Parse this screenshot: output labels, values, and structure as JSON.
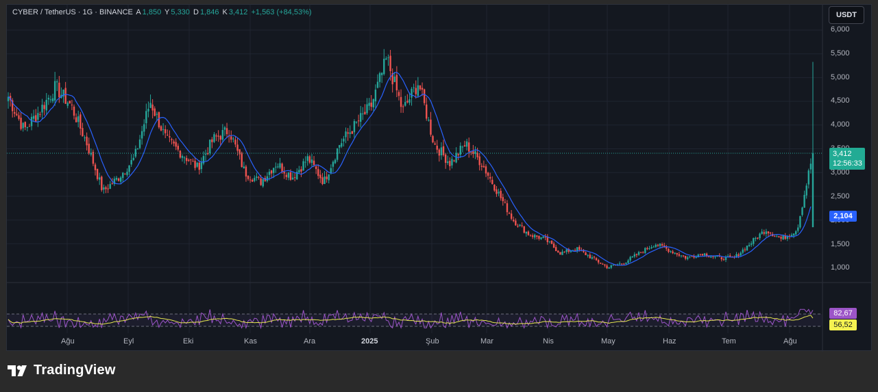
{
  "legend": {
    "symbol": "CYBER / TetherUS · 1G · BINANCE",
    "open_label": "A",
    "open": "1,850",
    "high_label": "Y",
    "high": "5,330",
    "low_label": "D",
    "low": "1,846",
    "close_label": "K",
    "close": "3,412",
    "change": "+1,563 (+84,53%)"
  },
  "currency": "USDT",
  "y_ticks": [
    "6,000",
    "5,500",
    "5,000",
    "4,500",
    "4,000",
    "3,500",
    "3,000",
    "2,500",
    "2,000",
    "1,500",
    "1,000"
  ],
  "x_ticks": [
    "Ağu",
    "Eyl",
    "Eki",
    "Kas",
    "Ara",
    "2025",
    "Şub",
    "Mar",
    "Nis",
    "May",
    "Haz",
    "Tem",
    "Ağu"
  ],
  "last_price": {
    "value": "3,412",
    "countdown": "12:56:33"
  },
  "ma_value": "2,104",
  "rsi": {
    "value": "82,67",
    "ma": "56,52"
  },
  "brand": {
    "name": "TradingView"
  },
  "colors": {
    "up": "#26a69a",
    "down": "#ef5350",
    "ma_line": "#2962ff",
    "rsi_line": "#9c55c8",
    "rsi_ma": "#e6e650",
    "bg": "#141820"
  },
  "chart_data": {
    "type": "candlestick",
    "title": "CYBER / TetherUS · 1G · BINANCE",
    "ylim": [
      0.8,
      6.0
    ],
    "x_labels": [
      "Ağu",
      "Eyl",
      "Eki",
      "Kas",
      "Ara",
      "2025",
      "Şub",
      "Mar",
      "Nis",
      "May",
      "Haz",
      "Tem",
      "Ağu"
    ],
    "approx_close_path": [
      [
        "Jul",
        4.6
      ],
      [
        "Jul",
        3.9
      ],
      [
        "Jul",
        4.3
      ],
      [
        "Jul",
        4.8
      ],
      [
        "Ağu",
        4.4
      ],
      [
        "Ağu",
        3.6
      ],
      [
        "Ağu",
        2.6
      ],
      [
        "Ağu",
        2.9
      ],
      [
        "Eyl",
        3.3
      ],
      [
        "Eyl",
        4.5
      ],
      [
        "Eyl",
        3.7
      ],
      [
        "Eyl",
        3.4
      ],
      [
        "Eyl",
        3.1
      ],
      [
        "Eki",
        3.7
      ],
      [
        "Eki",
        3.9
      ],
      [
        "Eki",
        3.0
      ],
      [
        "Eki",
        2.8
      ],
      [
        "Kas",
        3.2
      ],
      [
        "Kas",
        2.9
      ],
      [
        "Kas",
        3.3
      ],
      [
        "Kas",
        2.8
      ],
      [
        "Kas",
        3.6
      ],
      [
        "Kas",
        4.0
      ],
      [
        "Ara",
        4.4
      ],
      [
        "Ara",
        5.4
      ],
      [
        "Ara",
        4.3
      ],
      [
        "Ara",
        4.9
      ],
      [
        "Ara",
        3.6
      ],
      [
        "2025",
        3.2
      ],
      [
        "2025",
        3.6
      ],
      [
        "2025",
        3.2
      ],
      [
        "Şub",
        2.6
      ],
      [
        "Şub",
        2.0
      ],
      [
        "Şub",
        1.7
      ],
      [
        "Mar",
        1.6
      ],
      [
        "Mar",
        1.3
      ],
      [
        "Mar",
        1.4
      ],
      [
        "Nis",
        1.2
      ],
      [
        "Nis",
        1.0
      ],
      [
        "Nis",
        1.1
      ],
      [
        "May",
        1.3
      ],
      [
        "May",
        1.5
      ],
      [
        "May",
        1.35
      ],
      [
        "Haz",
        1.2
      ],
      [
        "Haz",
        1.3
      ],
      [
        "Haz",
        1.2
      ],
      [
        "Tem",
        1.2
      ],
      [
        "Tem",
        1.5
      ],
      [
        "Tem",
        1.8
      ],
      [
        "Ağu",
        1.6
      ],
      [
        "Ağu",
        1.8
      ],
      [
        "Ağu",
        3.412
      ]
    ],
    "rsi": {
      "last": 82.67,
      "ma_last": 56.52,
      "bands": [
        70,
        30
      ]
    }
  }
}
